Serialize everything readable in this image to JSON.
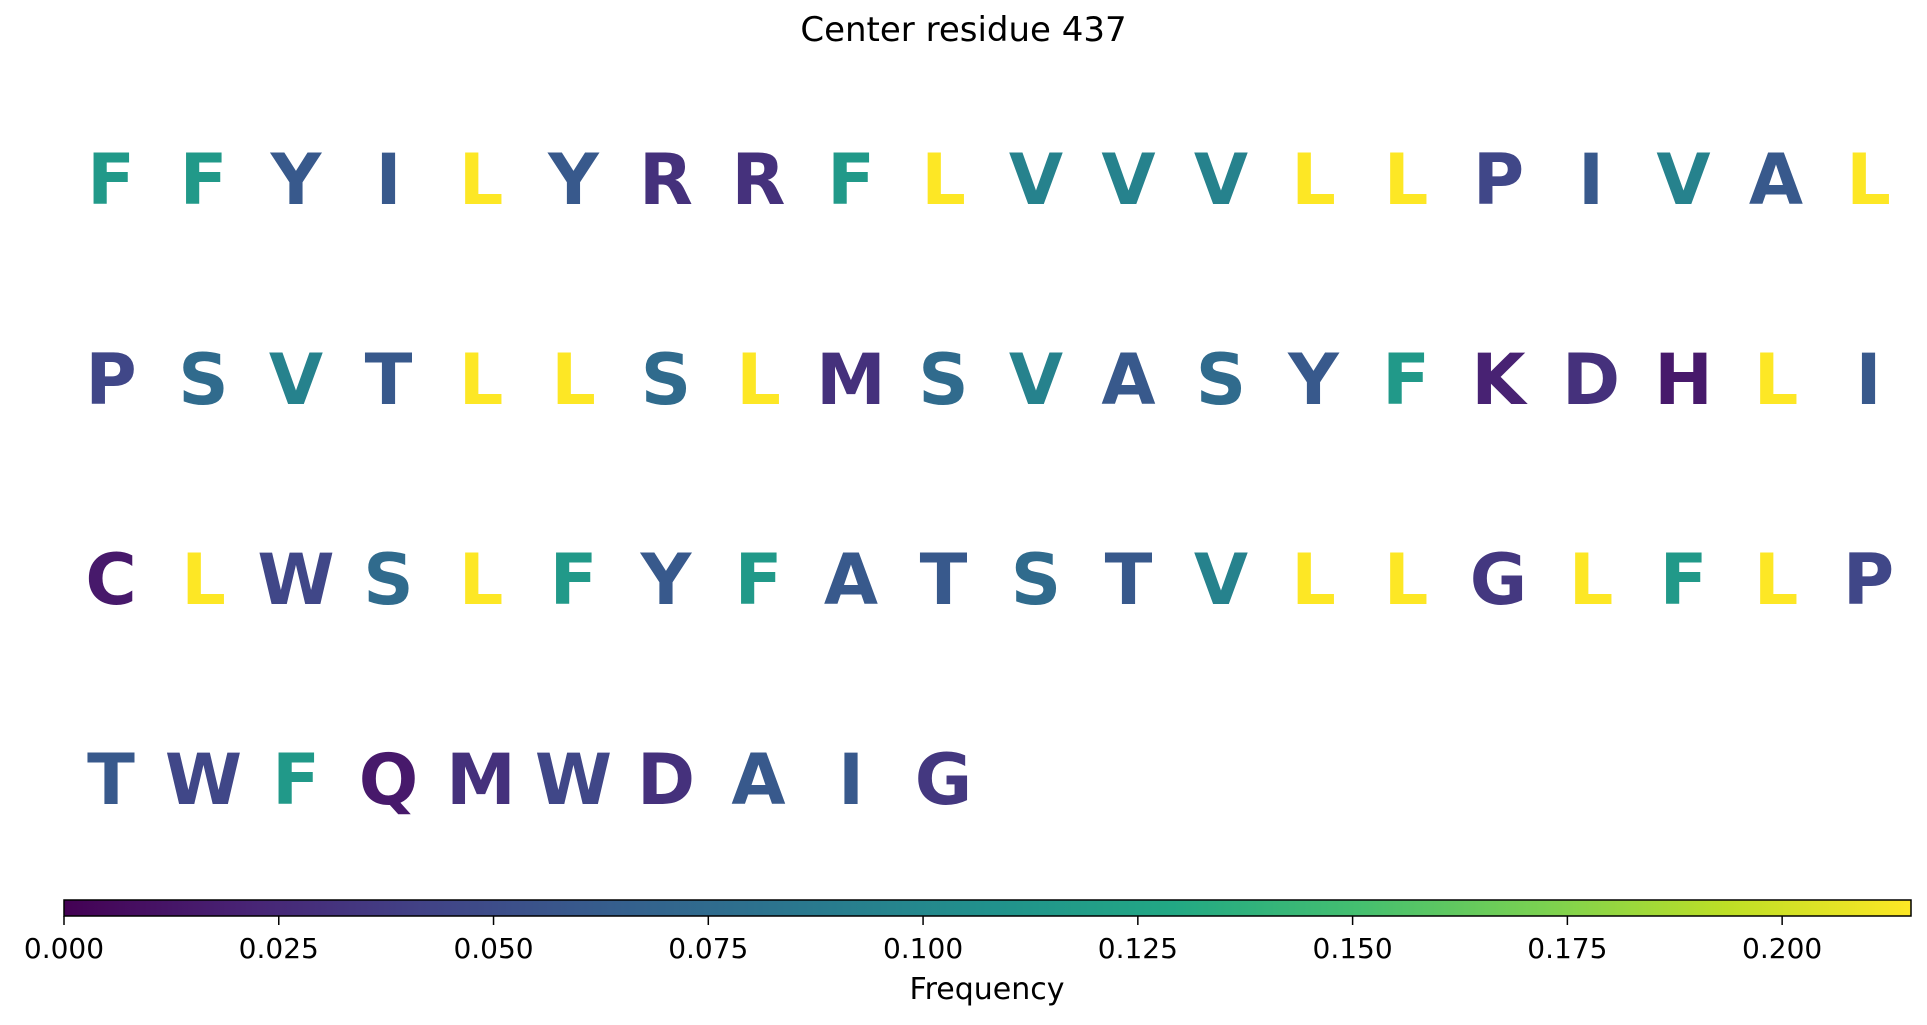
{
  "chart_data": {
    "type": "sequence-colormap",
    "title": "Center residue 437",
    "colormap": "viridis",
    "colorbar": {
      "label": "Frequency",
      "range": [
        0,
        0.215
      ],
      "ticks": [
        0.0,
        0.025,
        0.05,
        0.075,
        0.1,
        0.125,
        0.15,
        0.175,
        0.2
      ],
      "tick_labels": [
        "0.000",
        "0.025",
        "0.050",
        "0.075",
        "0.100",
        "0.125",
        "0.150",
        "0.175",
        "0.200"
      ]
    },
    "residues": [
      {
        "aa": "F",
        "freq": 0.115
      },
      {
        "aa": "F",
        "freq": 0.115
      },
      {
        "aa": "Y",
        "freq": 0.06
      },
      {
        "aa": "I",
        "freq": 0.06
      },
      {
        "aa": "L",
        "freq": 0.215
      },
      {
        "aa": "Y",
        "freq": 0.06
      },
      {
        "aa": "R",
        "freq": 0.03
      },
      {
        "aa": "R",
        "freq": 0.03
      },
      {
        "aa": "F",
        "freq": 0.115
      },
      {
        "aa": "L",
        "freq": 0.215
      },
      {
        "aa": "V",
        "freq": 0.095
      },
      {
        "aa": "V",
        "freq": 0.095
      },
      {
        "aa": "V",
        "freq": 0.095
      },
      {
        "aa": "L",
        "freq": 0.215
      },
      {
        "aa": "L",
        "freq": 0.215
      },
      {
        "aa": "P",
        "freq": 0.045
      },
      {
        "aa": "I",
        "freq": 0.06
      },
      {
        "aa": "V",
        "freq": 0.095
      },
      {
        "aa": "A",
        "freq": 0.06
      },
      {
        "aa": "L",
        "freq": 0.215
      },
      {
        "aa": "P",
        "freq": 0.045
      },
      {
        "aa": "S",
        "freq": 0.075
      },
      {
        "aa": "V",
        "freq": 0.095
      },
      {
        "aa": "T",
        "freq": 0.06
      },
      {
        "aa": "L",
        "freq": 0.215
      },
      {
        "aa": "L",
        "freq": 0.215
      },
      {
        "aa": "S",
        "freq": 0.075
      },
      {
        "aa": "L",
        "freq": 0.215
      },
      {
        "aa": "M",
        "freq": 0.03
      },
      {
        "aa": "S",
        "freq": 0.075
      },
      {
        "aa": "V",
        "freq": 0.095
      },
      {
        "aa": "A",
        "freq": 0.06
      },
      {
        "aa": "S",
        "freq": 0.075
      },
      {
        "aa": "Y",
        "freq": 0.06
      },
      {
        "aa": "F",
        "freq": 0.115
      },
      {
        "aa": "K",
        "freq": 0.02
      },
      {
        "aa": "D",
        "freq": 0.03
      },
      {
        "aa": "H",
        "freq": 0.015
      },
      {
        "aa": "L",
        "freq": 0.215
      },
      {
        "aa": "I",
        "freq": 0.06
      },
      {
        "aa": "C",
        "freq": 0.015
      },
      {
        "aa": "L",
        "freq": 0.215
      },
      {
        "aa": "W",
        "freq": 0.045
      },
      {
        "aa": "S",
        "freq": 0.075
      },
      {
        "aa": "L",
        "freq": 0.215
      },
      {
        "aa": "F",
        "freq": 0.115
      },
      {
        "aa": "Y",
        "freq": 0.06
      },
      {
        "aa": "F",
        "freq": 0.115
      },
      {
        "aa": "A",
        "freq": 0.06
      },
      {
        "aa": "T",
        "freq": 0.06
      },
      {
        "aa": "S",
        "freq": 0.075
      },
      {
        "aa": "T",
        "freq": 0.06
      },
      {
        "aa": "V",
        "freq": 0.095
      },
      {
        "aa": "L",
        "freq": 0.215
      },
      {
        "aa": "L",
        "freq": 0.215
      },
      {
        "aa": "G",
        "freq": 0.035
      },
      {
        "aa": "L",
        "freq": 0.215
      },
      {
        "aa": "F",
        "freq": 0.115
      },
      {
        "aa": "L",
        "freq": 0.215
      },
      {
        "aa": "P",
        "freq": 0.045
      },
      {
        "aa": "T",
        "freq": 0.06
      },
      {
        "aa": "W",
        "freq": 0.045
      },
      {
        "aa": "F",
        "freq": 0.115
      },
      {
        "aa": "Q",
        "freq": 0.015
      },
      {
        "aa": "M",
        "freq": 0.03
      },
      {
        "aa": "W",
        "freq": 0.045
      },
      {
        "aa": "D",
        "freq": 0.03
      },
      {
        "aa": "A",
        "freq": 0.06
      },
      {
        "aa": "I",
        "freq": 0.06
      },
      {
        "aa": "G",
        "freq": 0.035
      }
    ]
  }
}
